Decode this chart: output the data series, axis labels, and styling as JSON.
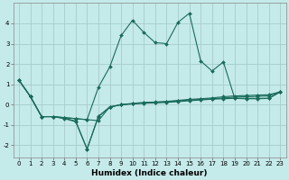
{
  "xlabel": "Humidex (Indice chaleur)",
  "background_color": "#c5eaea",
  "grid_color": "#a8cccc",
  "line_color": "#1a6b5a",
  "x_values": [
    0,
    1,
    2,
    3,
    4,
    5,
    6,
    7,
    8,
    9,
    10,
    11,
    12,
    13,
    14,
    15,
    16,
    17,
    18,
    19,
    20,
    21,
    22,
    23
  ],
  "series": [
    [
      1.2,
      0.4,
      -0.6,
      -0.6,
      -0.7,
      -0.85,
      -2.2,
      -0.6,
      -0.15,
      0.0,
      0.05,
      0.1,
      0.12,
      0.15,
      0.2,
      0.25,
      0.28,
      0.32,
      0.38,
      0.42,
      0.44,
      0.46,
      0.48,
      0.62
    ],
    [
      1.2,
      0.4,
      -0.6,
      -0.6,
      -0.65,
      -0.7,
      -0.75,
      0.85,
      1.85,
      3.4,
      4.15,
      3.55,
      3.05,
      3.0,
      4.05,
      4.5,
      2.15,
      1.65,
      2.1,
      0.3,
      0.28,
      0.28,
      0.3,
      0.62
    ],
    [
      1.2,
      0.4,
      -0.6,
      -0.6,
      -0.65,
      -0.7,
      -0.75,
      -0.8,
      -0.12,
      -0.02,
      0.03,
      0.06,
      0.08,
      0.1,
      0.14,
      0.18,
      0.22,
      0.26,
      0.28,
      0.3,
      0.3,
      0.3,
      0.3,
      0.62
    ],
    [
      1.2,
      0.4,
      -0.6,
      -0.6,
      -0.68,
      -0.82,
      -2.2,
      -0.58,
      -0.12,
      -0.01,
      0.03,
      0.07,
      0.1,
      0.13,
      0.17,
      0.22,
      0.25,
      0.28,
      0.32,
      0.36,
      0.38,
      0.4,
      0.42,
      0.62
    ]
  ],
  "ylim": [
    -2.6,
    5.0
  ],
  "yticks": [
    -2,
    -1,
    0,
    1,
    2,
    3,
    4
  ],
  "xticks": [
    0,
    1,
    2,
    3,
    4,
    5,
    6,
    7,
    8,
    9,
    10,
    11,
    12,
    13,
    14,
    15,
    16,
    17,
    18,
    19,
    20,
    21,
    22,
    23
  ],
  "xlabel_fontsize": 6.5,
  "tick_fontsize": 5.0,
  "marker_size": 2.0,
  "linewidth": 0.8
}
